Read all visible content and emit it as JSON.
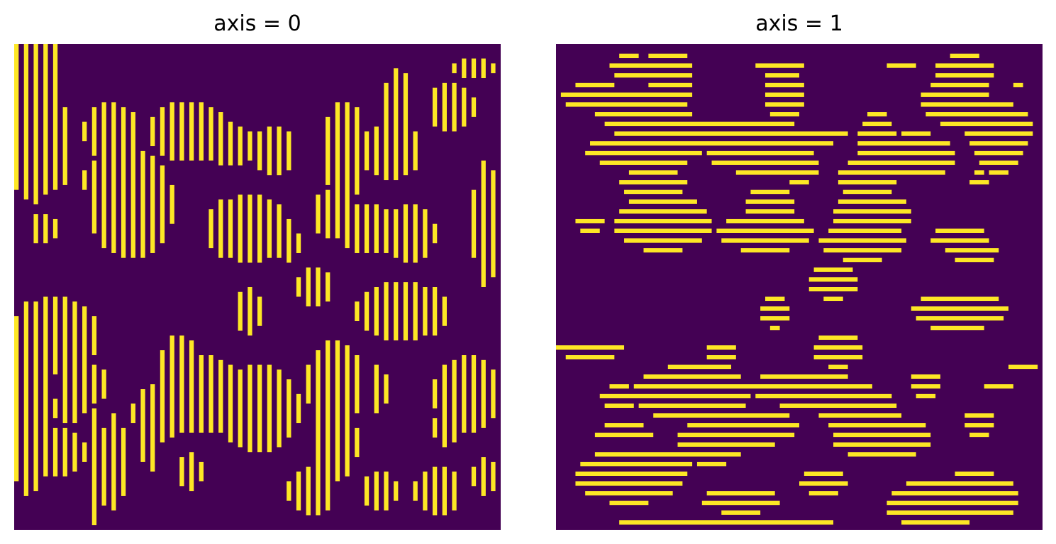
{
  "chart_data": [
    {
      "type": "heatmap",
      "title": "axis = 0",
      "colors": {
        "background": "#440154",
        "foreground": "#fde725"
      },
      "grid": false,
      "axes_visible": false,
      "description_of_values": "binary mask (0/1) shown as vertical line segments",
      "blobs": [
        [
          0.04,
          0.13,
          0.06,
          0.2
        ],
        [
          0.09,
          0.21,
          0.03,
          0.09
        ],
        [
          0.02,
          0.22,
          0.1,
          0.08
        ],
        [
          0.2,
          0.18,
          0.06,
          0.06
        ],
        [
          0.24,
          0.33,
          0.09,
          0.11
        ],
        [
          0.19,
          0.28,
          0.05,
          0.05
        ],
        [
          0.36,
          0.18,
          0.09,
          0.06
        ],
        [
          0.44,
          0.21,
          0.06,
          0.04
        ],
        [
          0.53,
          0.22,
          0.05,
          0.05
        ],
        [
          0.48,
          0.38,
          0.09,
          0.07
        ],
        [
          0.56,
          0.41,
          0.03,
          0.04
        ],
        [
          0.68,
          0.22,
          0.05,
          0.1
        ],
        [
          0.66,
          0.35,
          0.05,
          0.05
        ],
        [
          0.73,
          0.38,
          0.07,
          0.05
        ],
        [
          0.78,
          0.22,
          0.06,
          0.06
        ],
        [
          0.79,
          0.12,
          0.03,
          0.07
        ],
        [
          0.9,
          0.13,
          0.05,
          0.05
        ],
        [
          0.94,
          0.05,
          0.05,
          0.02
        ],
        [
          0.97,
          0.37,
          0.03,
          0.13
        ],
        [
          0.06,
          0.38,
          0.03,
          0.03
        ],
        [
          0.81,
          0.39,
          0.06,
          0.06
        ],
        [
          0.62,
          0.5,
          0.04,
          0.04
        ],
        [
          0.48,
          0.55,
          0.03,
          0.05
        ],
        [
          0.8,
          0.55,
          0.1,
          0.06
        ],
        [
          0.09,
          0.6,
          0.09,
          0.08
        ],
        [
          0.15,
          0.7,
          0.05,
          0.04
        ],
        [
          0.03,
          0.73,
          0.05,
          0.2
        ],
        [
          0.38,
          0.72,
          0.1,
          0.08
        ],
        [
          0.3,
          0.76,
          0.06,
          0.06
        ],
        [
          0.34,
          0.65,
          0.04,
          0.05
        ],
        [
          0.5,
          0.75,
          0.09,
          0.09
        ],
        [
          0.66,
          0.7,
          0.06,
          0.09
        ],
        [
          0.66,
          0.82,
          0.05,
          0.08
        ],
        [
          0.11,
          0.75,
          0.04,
          0.03
        ],
        [
          0.08,
          0.84,
          0.07,
          0.05
        ],
        [
          0.61,
          0.92,
          0.05,
          0.05
        ],
        [
          0.75,
          0.71,
          0.02,
          0.05
        ],
        [
          0.93,
          0.72,
          0.07,
          0.08
        ],
        [
          0.89,
          0.79,
          0.03,
          0.04
        ],
        [
          0.87,
          0.92,
          0.05,
          0.05
        ],
        [
          0.97,
          0.89,
          0.03,
          0.04
        ],
        [
          0.75,
          0.92,
          0.04,
          0.04
        ],
        [
          0.17,
          0.87,
          0.02,
          0.12
        ],
        [
          0.21,
          0.86,
          0.02,
          0.1
        ],
        [
          0.36,
          0.88,
          0.03,
          0.04
        ],
        [
          0.28,
          0.82,
          0.02,
          0.06
        ]
      ]
    },
    {
      "type": "heatmap",
      "title": "axis = 1",
      "colors": {
        "background": "#440154",
        "foreground": "#fde725"
      },
      "grid": false,
      "axes_visible": false,
      "description_of_values": "binary mask (0/1) shown as horizontal line segments",
      "blobs": [
        [
          0.15,
          0.05,
          0.04,
          0.03
        ],
        [
          0.23,
          0.06,
          0.05,
          0.05
        ],
        [
          0.08,
          0.11,
          0.07,
          0.03
        ],
        [
          0.18,
          0.14,
          0.1,
          0.04
        ],
        [
          0.24,
          0.09,
          0.04,
          0.05
        ],
        [
          0.46,
          0.05,
          0.05,
          0.02
        ],
        [
          0.47,
          0.1,
          0.04,
          0.07
        ],
        [
          0.36,
          0.19,
          0.24,
          0.03
        ],
        [
          0.18,
          0.22,
          0.12,
          0.04
        ],
        [
          0.42,
          0.23,
          0.11,
          0.04
        ],
        [
          0.5,
          0.25,
          0.04,
          0.04
        ],
        [
          0.66,
          0.2,
          0.04,
          0.06
        ],
        [
          0.64,
          0.28,
          0.06,
          0.05
        ],
        [
          0.74,
          0.23,
          0.08,
          0.05
        ],
        [
          0.82,
          0.12,
          0.07,
          0.05
        ],
        [
          0.84,
          0.06,
          0.06,
          0.04
        ],
        [
          0.91,
          0.18,
          0.07,
          0.06
        ],
        [
          0.91,
          0.24,
          0.04,
          0.03
        ],
        [
          0.87,
          0.28,
          0.02,
          0.02
        ],
        [
          0.71,
          0.04,
          0.03,
          0.01
        ],
        [
          0.2,
          0.29,
          0.07,
          0.04
        ],
        [
          0.22,
          0.37,
          0.1,
          0.06
        ],
        [
          0.07,
          0.37,
          0.03,
          0.02
        ],
        [
          0.44,
          0.34,
          0.05,
          0.05
        ],
        [
          0.43,
          0.39,
          0.1,
          0.04
        ],
        [
          0.65,
          0.35,
          0.08,
          0.05
        ],
        [
          0.63,
          0.41,
          0.09,
          0.04
        ],
        [
          0.83,
          0.4,
          0.06,
          0.03
        ],
        [
          0.86,
          0.43,
          0.05,
          0.03
        ],
        [
          0.57,
          0.49,
          0.05,
          0.04
        ],
        [
          0.45,
          0.55,
          0.03,
          0.04
        ],
        [
          0.83,
          0.55,
          0.1,
          0.04
        ],
        [
          0.8,
          0.57,
          0.05,
          0.02
        ],
        [
          0.07,
          0.63,
          0.07,
          0.02
        ],
        [
          0.34,
          0.64,
          0.03,
          0.03
        ],
        [
          0.58,
          0.63,
          0.05,
          0.04
        ],
        [
          0.28,
          0.72,
          0.12,
          0.06
        ],
        [
          0.13,
          0.73,
          0.04,
          0.03
        ],
        [
          0.51,
          0.71,
          0.11,
          0.04
        ],
        [
          0.62,
          0.75,
          0.08,
          0.05
        ],
        [
          0.4,
          0.79,
          0.1,
          0.04
        ],
        [
          0.67,
          0.81,
          0.1,
          0.05
        ],
        [
          0.32,
          0.82,
          0.07,
          0.05
        ],
        [
          0.14,
          0.8,
          0.06,
          0.02
        ],
        [
          0.15,
          0.89,
          0.11,
          0.06
        ],
        [
          0.24,
          0.87,
          0.04,
          0.03
        ],
        [
          0.55,
          0.9,
          0.05,
          0.03
        ],
        [
          0.75,
          0.94,
          0.07,
          0.04
        ],
        [
          0.86,
          0.93,
          0.09,
          0.05
        ],
        [
          0.79,
          0.91,
          0.03,
          0.02
        ],
        [
          0.38,
          0.94,
          0.08,
          0.03
        ],
        [
          0.35,
          0.98,
          0.25,
          0.01
        ],
        [
          0.78,
          0.97,
          0.1,
          0.02
        ],
        [
          0.76,
          0.7,
          0.03,
          0.03
        ],
        [
          0.87,
          0.78,
          0.03,
          0.03
        ],
        [
          0.96,
          0.66,
          0.03,
          0.01
        ],
        [
          0.91,
          0.7,
          0.03,
          0.01
        ],
        [
          0.95,
          0.08,
          0.01,
          0.01
        ],
        [
          0.93,
          0.97,
          0.01,
          0.01
        ]
      ]
    }
  ]
}
